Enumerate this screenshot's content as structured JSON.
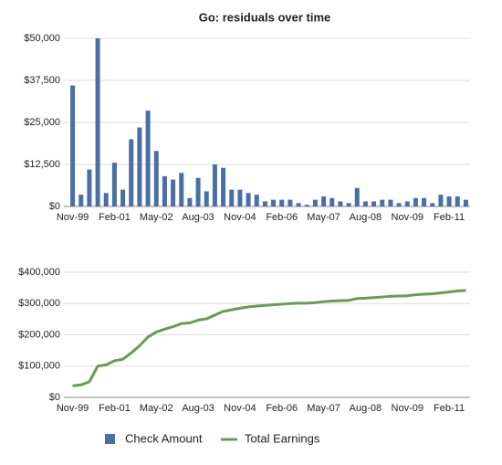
{
  "chart_data": [
    {
      "type": "bar",
      "title": "Go: residuals over time",
      "categories": [
        "Nov-99",
        null,
        null,
        null,
        null,
        "Feb-01",
        null,
        null,
        null,
        null,
        "May-02",
        null,
        null,
        null,
        null,
        "Aug-03",
        null,
        null,
        null,
        null,
        "Nov-04",
        null,
        null,
        null,
        null,
        "Feb-06",
        null,
        null,
        null,
        null,
        "May-07",
        null,
        null,
        null,
        null,
        "Aug-08",
        null,
        null,
        null,
        null,
        "Nov-09",
        null,
        null,
        null,
        null,
        "Feb-11",
        null,
        null
      ],
      "series": [
        {
          "name": "Check Amount",
          "color": "#4a6fa5",
          "values": [
            36000,
            3500,
            11000,
            50000,
            4000,
            13000,
            5000,
            20000,
            23500,
            28500,
            16500,
            9000,
            8000,
            10000,
            2500,
            8500,
            4500,
            12500,
            11500,
            5000,
            5000,
            4000,
            3500,
            1500,
            2000,
            2000,
            2000,
            1000,
            500,
            2000,
            3000,
            2500,
            1500,
            1000,
            5500,
            1500,
            1500,
            2000,
            2000,
            1000,
            1500,
            2500,
            2500,
            1000,
            3500,
            3000,
            3000,
            2000
          ]
        }
      ],
      "ylim": [
        0,
        50000
      ],
      "yticks": [
        {
          "value": 0,
          "label": "$0"
        },
        {
          "value": 12500,
          "label": "$12,500"
        },
        {
          "value": 25000,
          "label": "$25,000"
        },
        {
          "value": 37500,
          "label": "$37,500"
        },
        {
          "value": 50000,
          "label": "$50,000"
        }
      ],
      "grid": true
    },
    {
      "type": "line",
      "categories": [
        "Nov-99",
        null,
        null,
        null,
        null,
        "Feb-01",
        null,
        null,
        null,
        null,
        "May-02",
        null,
        null,
        null,
        null,
        "Aug-03",
        null,
        null,
        null,
        null,
        "Nov-04",
        null,
        null,
        null,
        null,
        "Feb-06",
        null,
        null,
        null,
        null,
        "May-07",
        null,
        null,
        null,
        null,
        "Aug-08",
        null,
        null,
        null,
        null,
        "Nov-09",
        null,
        null,
        null,
        null,
        "Feb-11",
        null,
        null
      ],
      "series": [
        {
          "name": "Total Earnings",
          "color": "#6a9a5b",
          "values": [
            37000,
            40000,
            50000,
            100000,
            104000,
            117000,
            122000,
            142000,
            165000,
            193000,
            209000,
            218000,
            226000,
            236000,
            238000,
            247000,
            251000,
            263000,
            275000,
            280000,
            285000,
            289000,
            292000,
            294000,
            296000,
            298000,
            300000,
            301000,
            301000,
            303000,
            306000,
            308000,
            309000,
            310000,
            316000,
            317000,
            319000,
            321000,
            323000,
            324000,
            325000,
            328000,
            330000,
            331000,
            334000,
            337000,
            340000,
            342000
          ]
        }
      ],
      "ylim": [
        0,
        400000
      ],
      "yticks": [
        {
          "value": 0,
          "label": "$0"
        },
        {
          "value": 100000,
          "label": "$100,000"
        },
        {
          "value": 200000,
          "label": "$200,000"
        },
        {
          "value": 300000,
          "label": "$300,000"
        },
        {
          "value": 400000,
          "label": "$400,000"
        }
      ],
      "grid": true
    }
  ]
}
